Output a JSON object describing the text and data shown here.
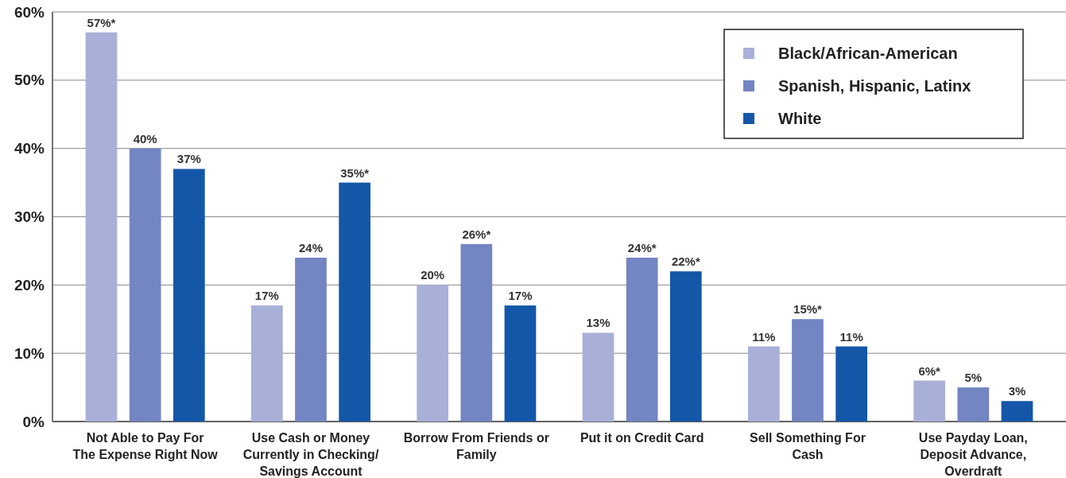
{
  "chart_data": {
    "type": "bar",
    "categories": [
      "Not Able to Pay For The Expense Right Now",
      "Use Cash or Money Currently in Checking/ Savings Account",
      "Borrow From Friends or Family",
      "Put it on Credit Card",
      "Sell Something For Cash",
      "Use Payday Loan, Deposit Advance, Overdraft"
    ],
    "series": [
      {
        "name": "Black/African-American",
        "color": "#a8b0d8",
        "values": [
          57,
          17,
          20,
          13,
          11,
          6
        ],
        "value_labels": [
          "57%*",
          "17%",
          "20%",
          "13%",
          "11%",
          "6%*"
        ]
      },
      {
        "name": "Spanish, Hispanic, Latinx",
        "color": "#7385c2",
        "values": [
          40,
          24,
          26,
          24,
          15,
          5
        ],
        "value_labels": [
          "40%",
          "24%",
          "26%*",
          "24%*",
          "15%*",
          "5%"
        ]
      },
      {
        "name": "White",
        "color": "#1457a8",
        "values": [
          37,
          35,
          17,
          22,
          11,
          3
        ],
        "value_labels": [
          "37%",
          "35%*",
          "17%",
          "22%*",
          "11%",
          "3%"
        ]
      }
    ],
    "ylim": [
      0,
      60
    ],
    "yticks": [
      {
        "value": 0,
        "label": "0%"
      },
      {
        "value": 10,
        "label": "10%"
      },
      {
        "value": 20,
        "label": "20%"
      },
      {
        "value": 30,
        "label": "30%"
      },
      {
        "value": 40,
        "label": "40%"
      },
      {
        "value": 50,
        "label": "50%"
      },
      {
        "value": 60,
        "label": "60%"
      }
    ],
    "grid": "y",
    "legend": "top right"
  }
}
